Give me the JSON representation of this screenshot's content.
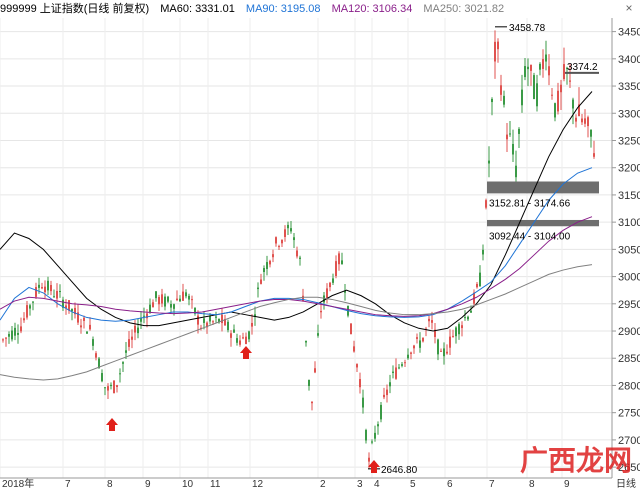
{
  "header": {
    "title": "999999 上证指数(日线 前复权)",
    "ma60": "MA60: 3331.01",
    "ma90": "MA90: 3195.08",
    "ma120": "MA120: 3106.34",
    "ma250": "MA250: 3021.82",
    "close_glyph": "×"
  },
  "colors": {
    "up": "#e0524f",
    "down": "#3a9a46",
    "ma60": "#000000",
    "ma90": "#1f74d6",
    "ma120": "#8a1f8a",
    "ma250": "#808080",
    "arrow": "#e0201a"
  },
  "y_ticks": [
    "3450",
    "3400",
    "3350",
    "3300",
    "3250",
    "3200",
    "3150",
    "3100",
    "3050",
    "3000",
    "2950",
    "2900",
    "2850",
    "2800",
    "2750",
    "2700",
    "2650"
  ],
  "x_ticks": [
    "2018年",
    "7",
    "8",
    "9",
    "10",
    "11",
    "12",
    "2",
    "3",
    "4",
    "5",
    "6",
    "7",
    "8",
    "9"
  ],
  "annotations": {
    "high": "3458.78",
    "low": "2646.80",
    "level": "3374.2",
    "zone1": "3152.81 - 3174.66",
    "zone2": "3092.44 - 3104.00"
  },
  "watermark": "广西龙网",
  "chart_data": {
    "type": "candlestick",
    "ylim": [
      2630,
      3475
    ],
    "ma_series": [
      {
        "name": "MA60",
        "values": [
          3050,
          3080,
          3070,
          3050,
          3020,
          2990,
          2960,
          2940,
          2925,
          2915,
          2910,
          2910,
          2915,
          2920,
          2925,
          2930,
          2935,
          2930,
          2925,
          2920,
          2925,
          2935,
          2950,
          2965,
          2975,
          2965,
          2950,
          2930,
          2915,
          2905,
          2900,
          2905,
          2925,
          2950,
          2985,
          3040,
          3100,
          3160,
          3220,
          3270,
          3310,
          3340
        ]
      },
      {
        "name": "MA90",
        "values": [
          2920,
          2960,
          2980,
          2970,
          2950,
          2935,
          2925,
          2920,
          2918,
          2920,
          2925,
          2930,
          2935,
          2935,
          2932,
          2930,
          2935,
          2945,
          2955,
          2960,
          2960,
          2958,
          2952,
          2945,
          2938,
          2932,
          2928,
          2926,
          2925,
          2926,
          2930,
          2940,
          2955,
          2972,
          2990,
          3020,
          3060,
          3100,
          3140,
          3170,
          3190,
          3200
        ]
      },
      {
        "name": "MA120",
        "values": [
          2940,
          2955,
          2962,
          2960,
          2955,
          2950,
          2948,
          2945,
          2940,
          2937,
          2935,
          2933,
          2932,
          2933,
          2935,
          2940,
          2945,
          2950,
          2955,
          2958,
          2958,
          2955,
          2950,
          2945,
          2940,
          2935,
          2930,
          2928,
          2927,
          2928,
          2932,
          2940,
          2950,
          2962,
          2978,
          2995,
          3015,
          3040,
          3065,
          3085,
          3100,
          3110
        ]
      },
      {
        "name": "MA250",
        "values": [
          2820,
          2815,
          2812,
          2810,
          2812,
          2818,
          2825,
          2835,
          2845,
          2855,
          2865,
          2875,
          2885,
          2895,
          2905,
          2915,
          2925,
          2935,
          2945,
          2952,
          2958,
          2962,
          2962,
          2958,
          2952,
          2945,
          2938,
          2933,
          2930,
          2930,
          2932,
          2935,
          2940,
          2948,
          2958,
          2968,
          2980,
          2992,
          3004,
          3012,
          3018,
          3022
        ]
      }
    ]
  }
}
